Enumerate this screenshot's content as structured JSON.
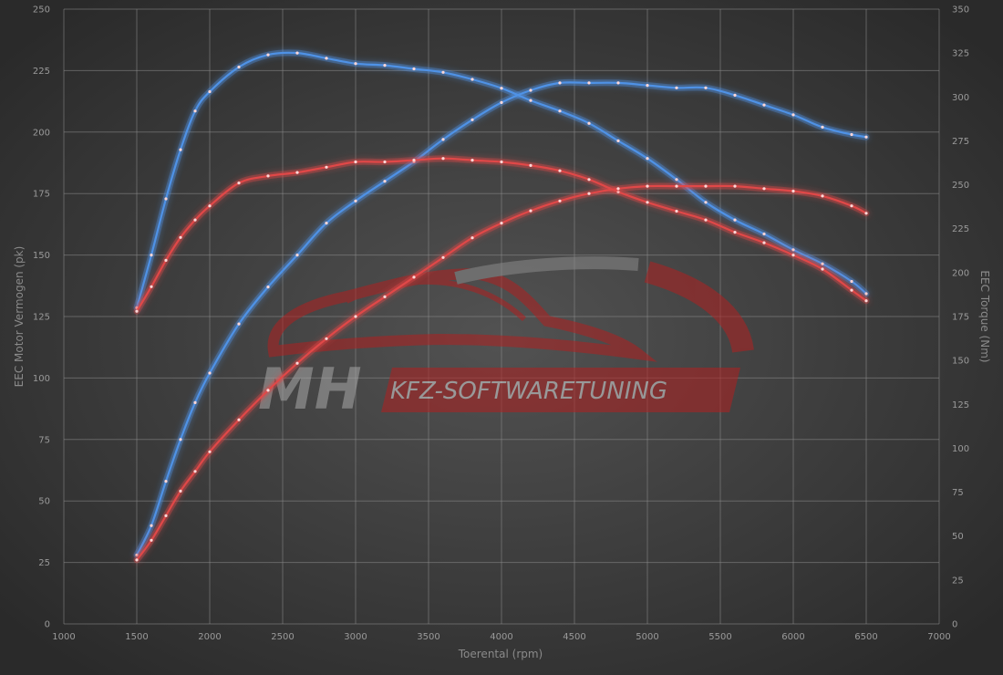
{
  "watermark": {
    "brand": "MH",
    "tagline": "KFZ-SOFTWARETUNING"
  },
  "chart_data": {
    "type": "line",
    "xlabel": "Toerental (rpm)",
    "ylabel": "EEC Motor Vermogen (pk)",
    "y2label": "EEC Torque (Nm)",
    "xlim": [
      1000,
      7000
    ],
    "ylim": [
      0,
      250
    ],
    "y2lim": [
      0,
      350
    ],
    "x_ticks": [
      1000,
      1500,
      2000,
      2500,
      3000,
      3500,
      4000,
      4500,
      5000,
      5500,
      6000,
      6500,
      7000
    ],
    "y_ticks": [
      0,
      25,
      50,
      75,
      100,
      125,
      150,
      175,
      200,
      225,
      250
    ],
    "y2_ticks": [
      0,
      25,
      50,
      75,
      100,
      125,
      150,
      175,
      200,
      225,
      250,
      275,
      300,
      325,
      350
    ],
    "grid": true,
    "series": [
      {
        "axis": "y2",
        "color": "#4f92e6",
        "x": [
          1500,
          1600,
          1700,
          1800,
          1900,
          2000,
          2200,
          2400,
          2600,
          2800,
          3000,
          3200,
          3400,
          3600,
          3800,
          4000,
          4200,
          4400,
          4600,
          4800,
          5000,
          5200,
          5400,
          5600,
          5800,
          6000,
          6200,
          6400,
          6500
        ],
        "values": [
          180,
          210,
          242,
          270,
          292,
          303,
          317,
          324,
          325,
          322,
          319,
          318,
          316,
          314,
          310,
          305,
          298,
          292,
          285,
          275,
          265,
          253,
          240,
          230,
          222,
          213,
          205,
          195,
          188
        ]
      },
      {
        "axis": "y1",
        "color": "#4f92e6",
        "x": [
          1500,
          1600,
          1700,
          1800,
          1900,
          2000,
          2200,
          2400,
          2600,
          2800,
          3000,
          3200,
          3400,
          3600,
          3800,
          4000,
          4200,
          4400,
          4600,
          4800,
          5000,
          5200,
          5400,
          5600,
          5800,
          6000,
          6200,
          6400,
          6500
        ],
        "values": [
          28,
          40,
          58,
          75,
          90,
          102,
          122,
          137,
          150,
          163,
          172,
          180,
          188,
          197,
          205,
          212,
          217,
          220,
          220,
          220,
          219,
          218,
          218,
          215,
          211,
          207,
          202,
          199,
          198
        ]
      },
      {
        "axis": "y2",
        "color": "#e04848",
        "x": [
          1500,
          1600,
          1700,
          1800,
          1900,
          2000,
          2200,
          2400,
          2600,
          2800,
          3000,
          3200,
          3400,
          3600,
          3800,
          4000,
          4200,
          4400,
          4600,
          4800,
          5000,
          5200,
          5400,
          5600,
          5800,
          6000,
          6200,
          6400,
          6500
        ],
        "values": [
          178,
          192,
          207,
          220,
          230,
          238,
          251,
          255,
          257,
          260,
          263,
          263,
          264,
          265,
          264,
          263,
          261,
          258,
          253,
          246,
          240,
          235,
          230,
          223,
          217,
          210,
          202,
          190,
          184
        ]
      },
      {
        "axis": "y1",
        "color": "#e04848",
        "x": [
          1500,
          1600,
          1700,
          1800,
          1900,
          2000,
          2200,
          2400,
          2600,
          2800,
          3000,
          3200,
          3400,
          3600,
          3800,
          4000,
          4200,
          4400,
          4600,
          4800,
          5000,
          5200,
          5400,
          5600,
          5800,
          6000,
          6200,
          6400,
          6500
        ],
        "values": [
          26,
          34,
          44,
          54,
          62,
          70,
          83,
          95,
          106,
          116,
          125,
          133,
          141,
          149,
          157,
          163,
          168,
          172,
          175,
          177,
          178,
          178,
          178,
          178,
          177,
          176,
          174,
          170,
          167
        ]
      }
    ]
  }
}
